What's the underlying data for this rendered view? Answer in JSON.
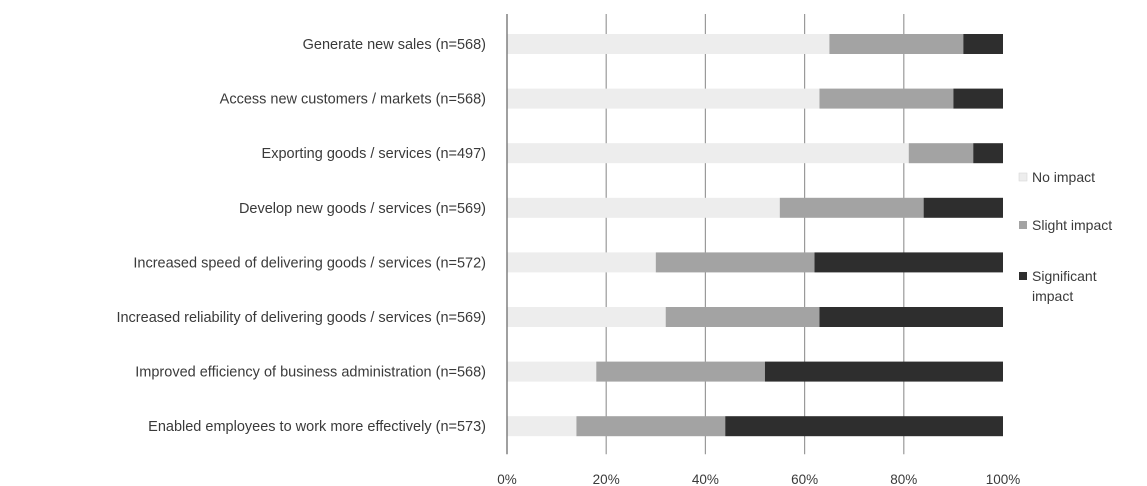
{
  "chart_data": {
    "type": "bar",
    "orientation": "horizontal",
    "stacked": true,
    "categories": [
      "Generate new sales (n=568)",
      "Access new customers / markets (n=568)",
      "Exporting goods / services (n=497)",
      "Develop new goods / services (n=569)",
      "Increased speed of delivering goods / services (n=572)",
      "Increased reliability of delivering goods / services (n=569)",
      "Improved efficiency of business administration (n=568)",
      "Enabled employees to work more effectively (n=573)"
    ],
    "series": [
      {
        "name": "No impact",
        "color": "#ededed",
        "values": [
          65,
          63,
          81,
          55,
          30,
          32,
          18,
          14
        ]
      },
      {
        "name": "Slight impact",
        "color": "#a3a3a3",
        "values": [
          27,
          27,
          13,
          29,
          32,
          31,
          34,
          30
        ]
      },
      {
        "name": "Significant impact",
        "color": "#2e2e2e",
        "values": [
          8,
          10,
          6,
          16,
          38,
          37,
          48,
          56
        ]
      }
    ],
    "xlim": [
      0,
      100
    ],
    "xticks": [
      "0%",
      "20%",
      "40%",
      "60%",
      "80%",
      "100%"
    ],
    "grid": "vertical",
    "legend_position": "right",
    "title": "",
    "xlabel": "",
    "ylabel": ""
  }
}
